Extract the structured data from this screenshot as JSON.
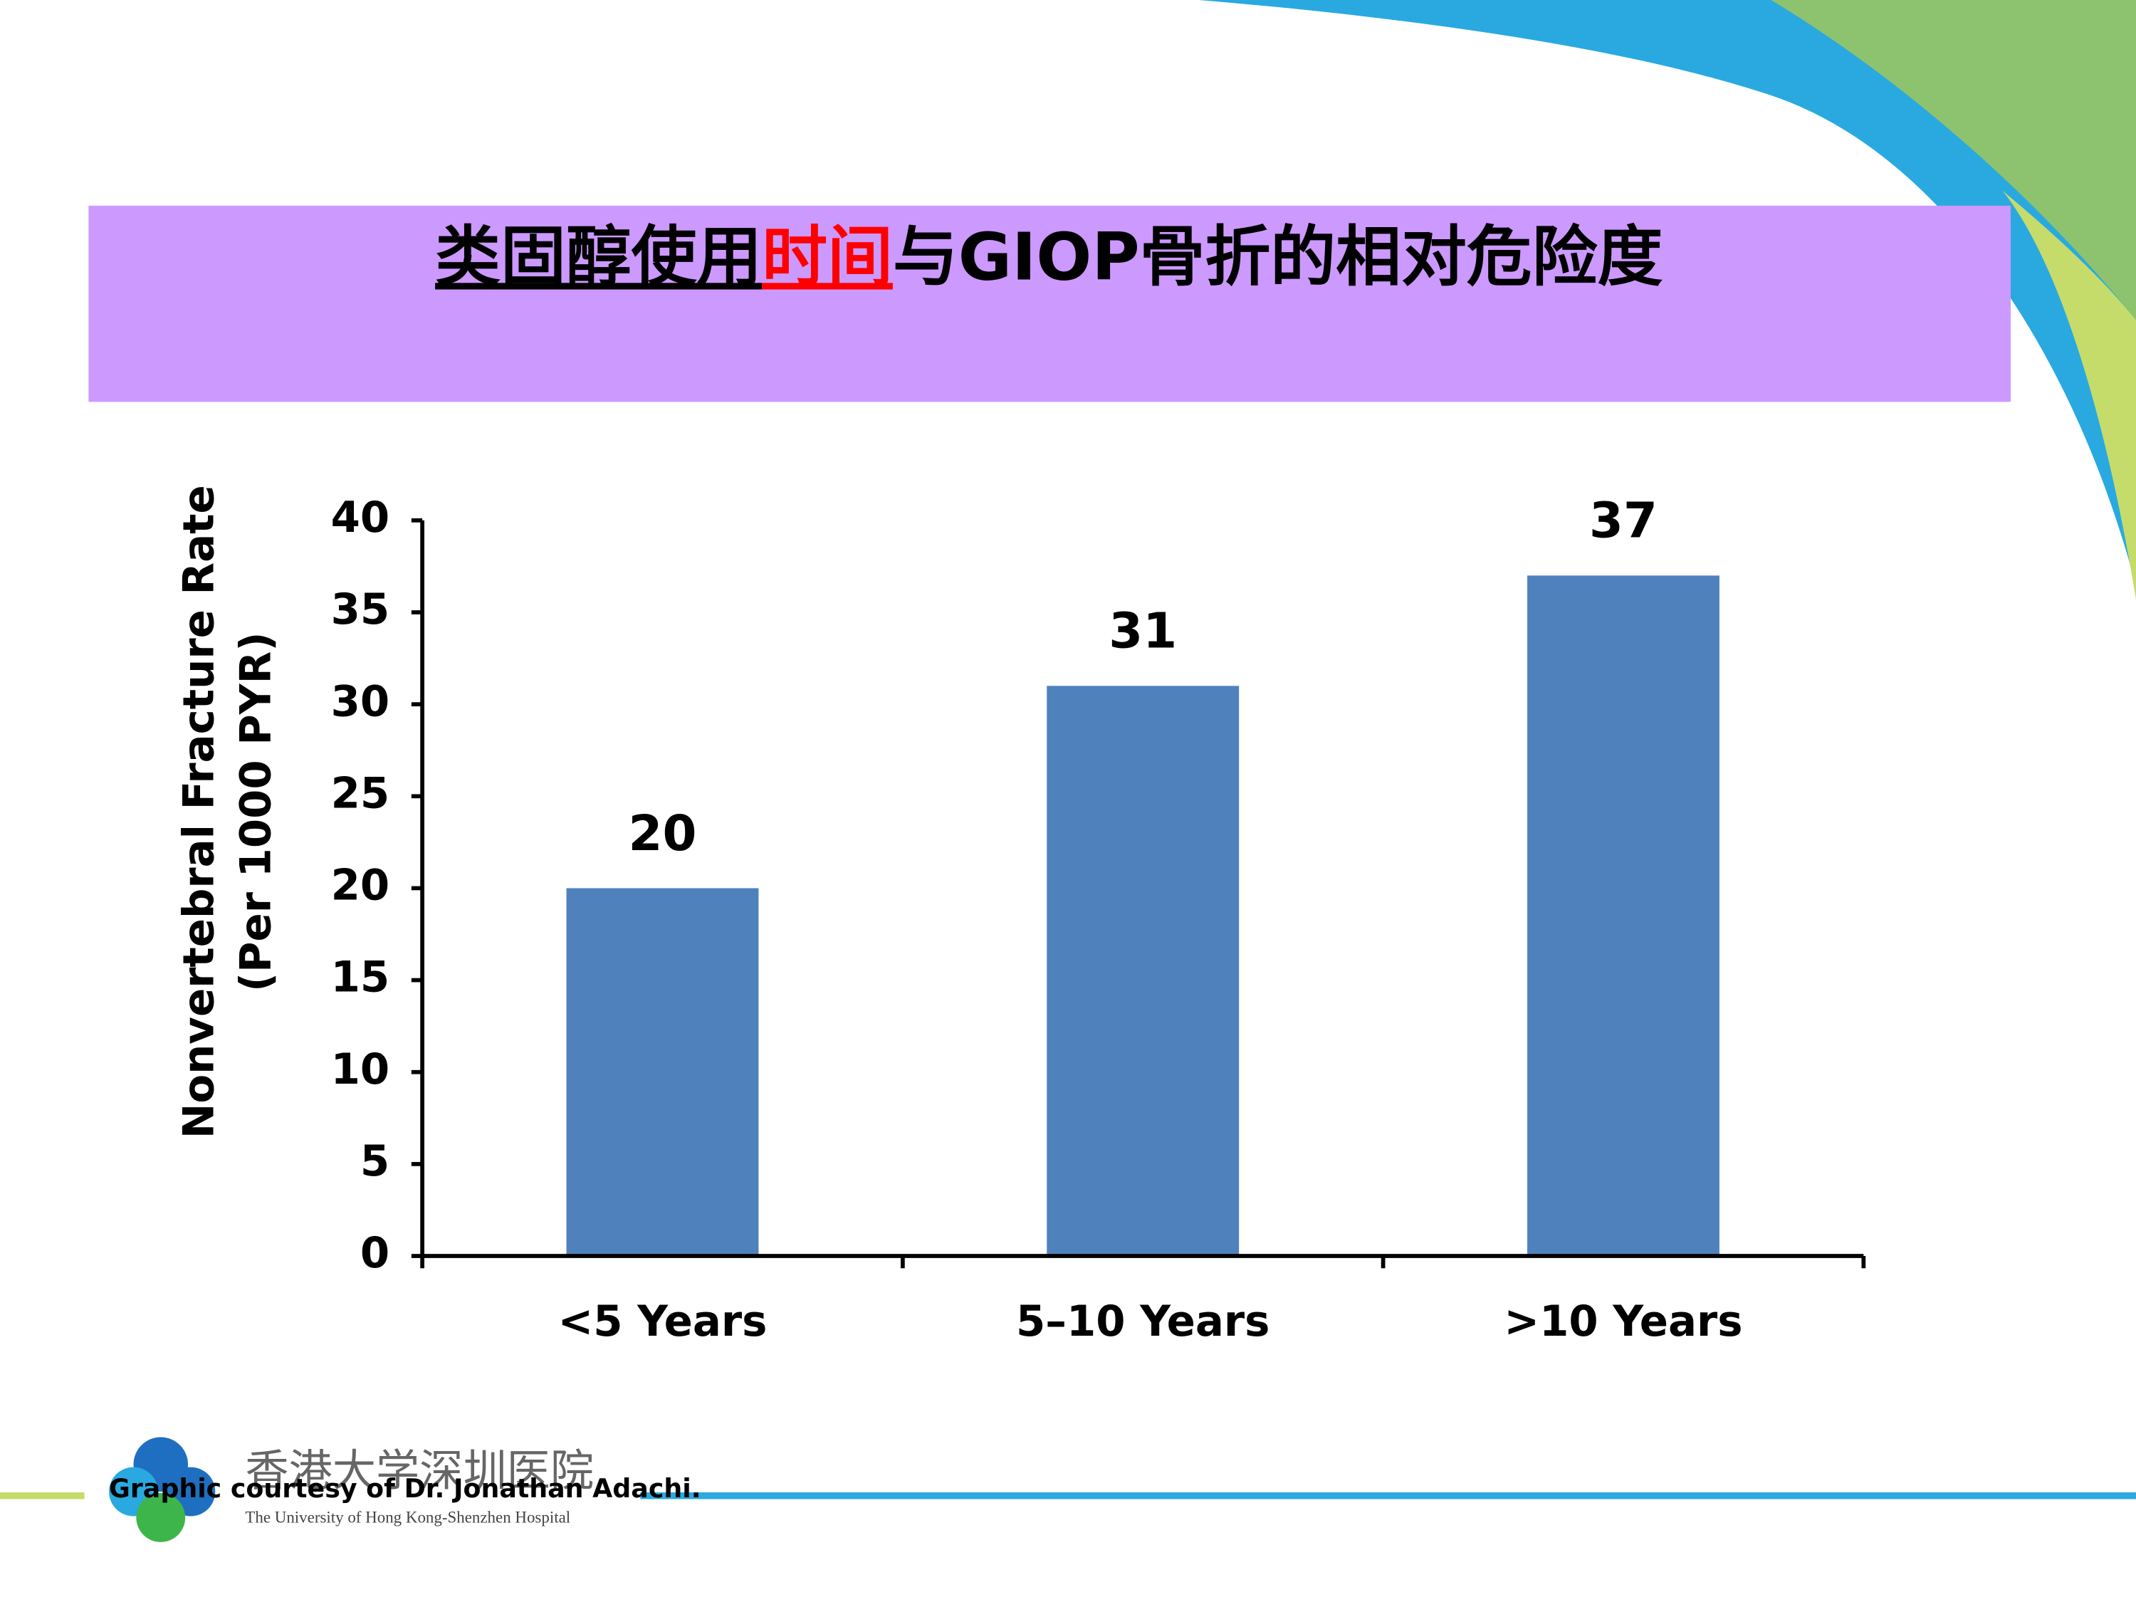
{
  "chart_data": {
    "type": "bar",
    "title_parts": [
      "类固醇使用",
      "时间",
      "与GIOP骨折的相对危险度"
    ],
    "ylabel_lines": [
      "Nonvertebral Fracture Rate",
      "(Per 1000 PYR)"
    ],
    "categories": [
      "<5 Years",
      "5–10 Years",
      ">10 Years"
    ],
    "values": [
      20,
      31,
      37
    ],
    "color": "#4f81bd",
    "ylim": [
      0,
      40
    ],
    "yticks": [
      0,
      5,
      10,
      15,
      20,
      25,
      30,
      35,
      40
    ],
    "grid": false
  },
  "footer": {
    "credit": "Graphic courtesy of Dr. Jonathan Adachi.",
    "logo_cn": "香港大学深圳医院",
    "logo_en": "The University of Hong Kong-Shenzhen Hospital"
  }
}
